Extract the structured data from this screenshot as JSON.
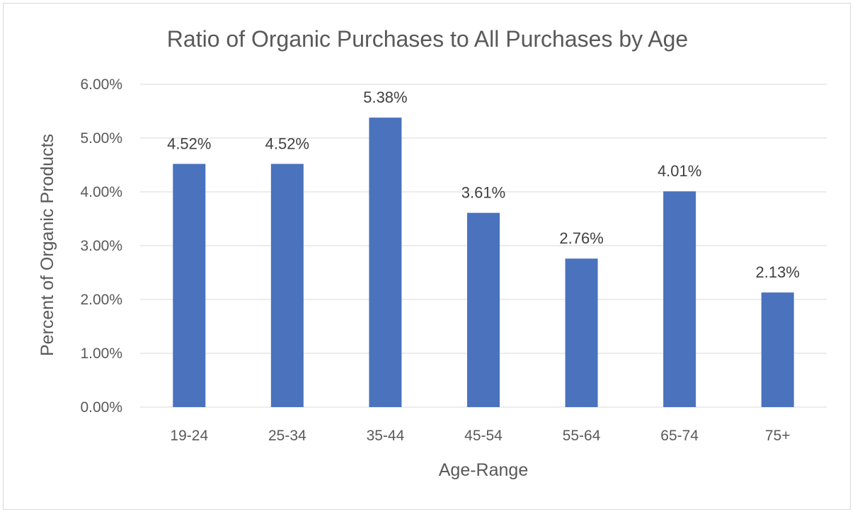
{
  "chart_data": {
    "type": "bar",
    "title": "Ratio of Organic Purchases to All Purchases by Age",
    "xlabel": "Age-Range",
    "ylabel": "Percent of Organic Products",
    "categories": [
      "19-24",
      "25-34",
      "35-44",
      "45-54",
      "55-64",
      "65-74",
      "75+"
    ],
    "values": [
      4.52,
      4.52,
      5.38,
      3.61,
      2.76,
      4.01,
      2.13
    ],
    "value_labels": [
      "4.52%",
      "4.52%",
      "5.38%",
      "3.61%",
      "2.76%",
      "4.01%",
      "2.13%"
    ],
    "ylim": [
      0,
      6
    ],
    "yticks": [
      0,
      1,
      2,
      3,
      4,
      5,
      6
    ],
    "ytick_labels": [
      "0.00%",
      "1.00%",
      "2.00%",
      "3.00%",
      "4.00%",
      "5.00%",
      "6.00%"
    ],
    "grid": true,
    "legend": "none",
    "bar_color": "#4a72bd",
    "gridline_color": "#d9d9d9",
    "text_color": "#595959"
  }
}
